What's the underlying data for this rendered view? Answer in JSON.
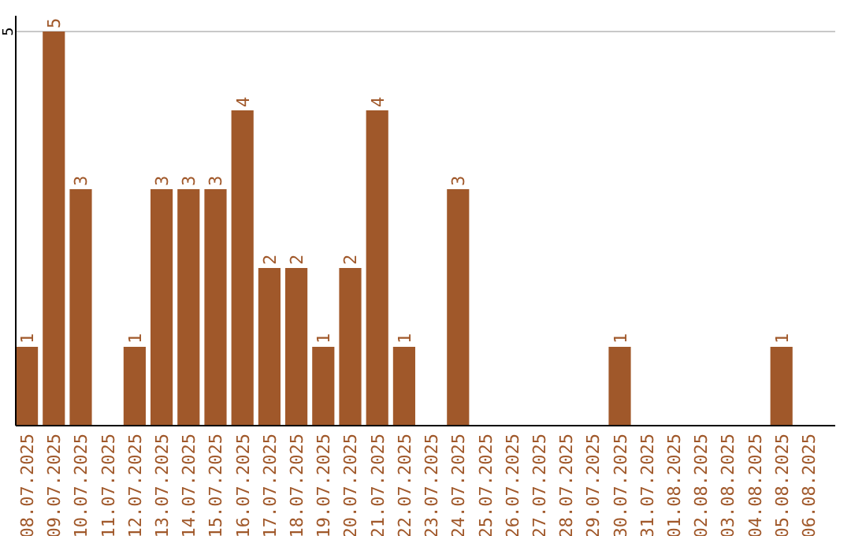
{
  "chart_data": {
    "type": "bar",
    "categories": [
      "08.07.2025",
      "09.07.2025",
      "10.07.2025",
      "11.07.2025",
      "12.07.2025",
      "13.07.2025",
      "14.07.2025",
      "15.07.2025",
      "16.07.2025",
      "17.07.2025",
      "18.07.2025",
      "19.07.2025",
      "20.07.2025",
      "21.07.2025",
      "22.07.2025",
      "23.07.2025",
      "24.07.2025",
      "25.07.2025",
      "26.07.2025",
      "27.07.2025",
      "28.07.2025",
      "29.07.2025",
      "30.07.2025",
      "31.07.2025",
      "01.08.2025",
      "02.08.2025",
      "03.08.2025",
      "04.08.2025",
      "05.08.2025",
      "06.08.2025"
    ],
    "values": [
      1,
      5,
      3,
      0,
      1,
      3,
      3,
      3,
      4,
      2,
      2,
      1,
      2,
      4,
      1,
      0,
      3,
      0,
      0,
      0,
      0,
      0,
      1,
      0,
      0,
      0,
      0,
      0,
      1,
      0
    ],
    "value_labels": [
      "1",
      "5",
      "3",
      null,
      "1",
      "3",
      "3",
      "3",
      "4",
      "2",
      "2",
      "1",
      "2",
      "4",
      "1",
      null,
      "3",
      null,
      null,
      null,
      null,
      null,
      "1",
      null,
      null,
      null,
      null,
      null,
      "1",
      null
    ],
    "color": "#a0582a",
    "ylim": [
      0,
      5.2
    ],
    "yticks": [
      5
    ],
    "grid": "y"
  }
}
